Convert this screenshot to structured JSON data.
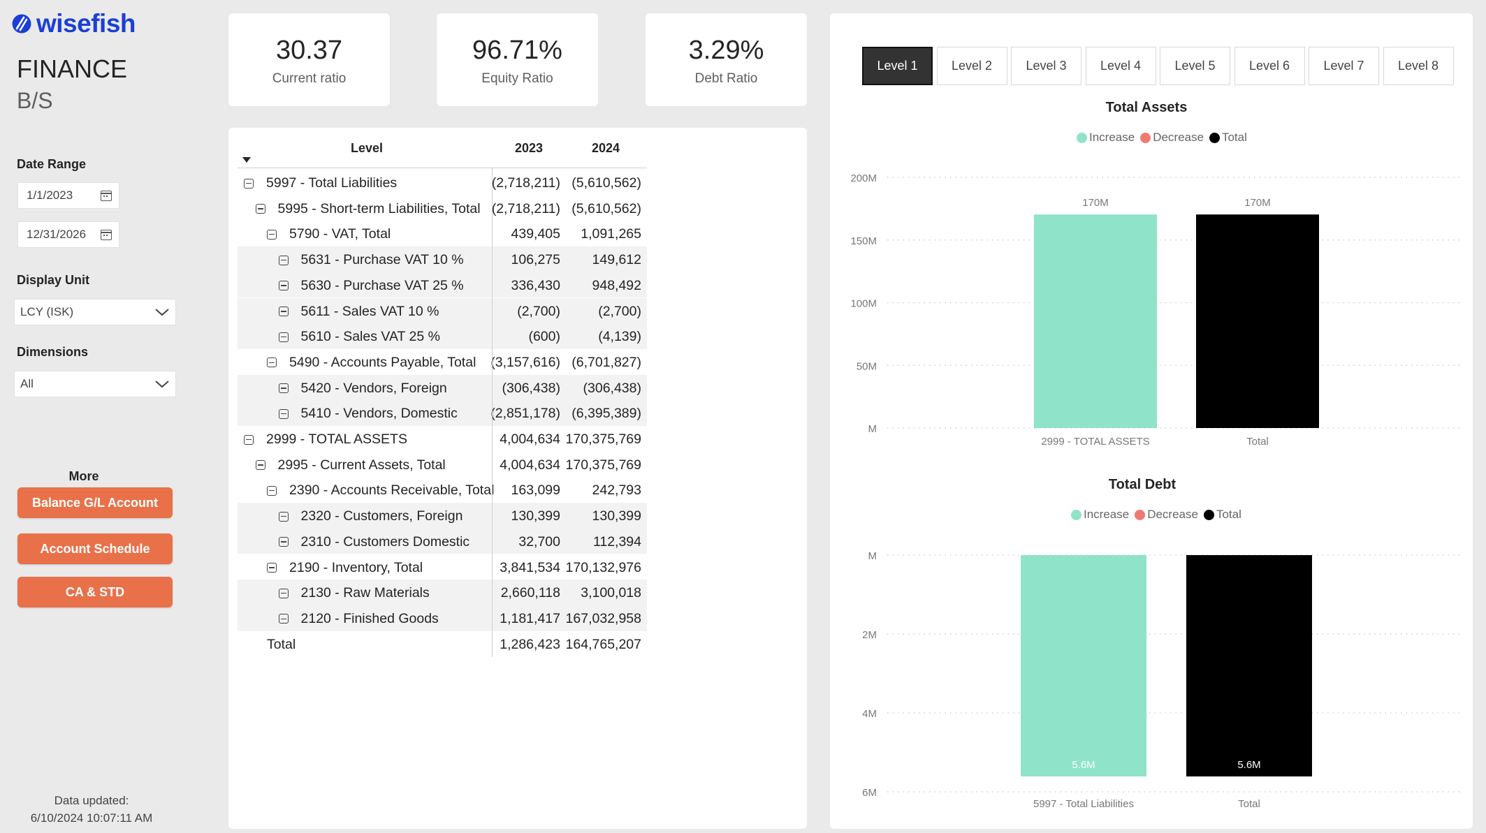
{
  "sidebar": {
    "logo_text": "wisefish",
    "title": "FINANCE",
    "subtitle": "B/S",
    "date_range_label": "Date Range",
    "date_start": "1/1/2023",
    "date_end": "12/31/2026",
    "display_unit_label": "Display Unit",
    "display_unit_value": "LCY (ISK)",
    "dimensions_label": "Dimensions",
    "dimensions_value": "All",
    "more_label": "More",
    "buttons": [
      "Balance G/L Account",
      "Account Schedule",
      "CA & STD"
    ],
    "data_updated_label": "Data updated:",
    "data_updated_value": "6/10/2024 10:07:11 AM"
  },
  "kpis": [
    {
      "value": "30.37",
      "label": "Current ratio"
    },
    {
      "value": "96.71%",
      "label": "Equity Ratio"
    },
    {
      "value": "3.29%",
      "label": "Debt Ratio"
    }
  ],
  "matrix": {
    "headers": {
      "level": "Level",
      "y2023": "2023",
      "y2024": "2024"
    },
    "rows": [
      {
        "label": "5997 - Total Liabilities",
        "v2023": "(2,718,211)",
        "v2024": "(5,610,562)"
      },
      {
        "label": "5995 - Short-term Liabilities, Total",
        "v2023": "(2,718,211)",
        "v2024": "(5,610,562)"
      },
      {
        "label": "5790 - VAT, Total",
        "v2023": "439,405",
        "v2024": "1,091,265"
      },
      {
        "label": "5631 - Purchase VAT 10 %",
        "v2023": "106,275",
        "v2024": "149,612"
      },
      {
        "label": "5630 - Purchase VAT 25 %",
        "v2023": "336,430",
        "v2024": "948,492"
      },
      {
        "label": "5611 - Sales VAT 10 %",
        "v2023": "(2,700)",
        "v2024": "(2,700)"
      },
      {
        "label": "5610 - Sales VAT 25 %",
        "v2023": "(600)",
        "v2024": "(4,139)"
      },
      {
        "label": "5490 - Accounts Payable, Total",
        "v2023": "(3,157,616)",
        "v2024": "(6,701,827)"
      },
      {
        "label": "5420 - Vendors, Foreign",
        "v2023": "(306,438)",
        "v2024": "(306,438)"
      },
      {
        "label": "5410 - Vendors, Domestic",
        "v2023": "(2,851,178)",
        "v2024": "(6,395,389)"
      },
      {
        "label": "2999 - TOTAL ASSETS",
        "v2023": "4,004,634",
        "v2024": "170,375,769"
      },
      {
        "label": "2995 - Current Assets, Total",
        "v2023": "4,004,634",
        "v2024": "170,375,769"
      },
      {
        "label": "2390 - Accounts Receivable, Total",
        "v2023": "163,099",
        "v2024": "242,793"
      },
      {
        "label": "2320 - Customers, Foreign",
        "v2023": "130,399",
        "v2024": "130,399"
      },
      {
        "label": "2310 - Customers Domestic",
        "v2023": "32,700",
        "v2024": "112,394"
      },
      {
        "label": "2190 - Inventory, Total",
        "v2023": "3,841,534",
        "v2024": "170,132,976"
      },
      {
        "label": "2130 - Raw Materials",
        "v2023": "2,660,118",
        "v2024": "3,100,018"
      },
      {
        "label": "2120 - Finished Goods",
        "v2023": "1,181,417",
        "v2024": "167,032,958"
      },
      {
        "label": "Total",
        "v2023": "1,286,423",
        "v2024": "164,765,207"
      }
    ]
  },
  "level_tabs": [
    "Level 1",
    "Level 2",
    "Level 3",
    "Level 4",
    "Level 5",
    "Level 6",
    "Level 7",
    "Level 8"
  ],
  "legend": {
    "increase": "Increase",
    "decrease": "Decrease",
    "total": "Total"
  },
  "colors": {
    "increase": "#8fe3c9",
    "decrease": "#ef7a72",
    "total": "#000000",
    "accent_orange": "#e8714a",
    "logo_blue": "#1b3fd6"
  },
  "chart_data": [
    {
      "type": "bar",
      "subtype": "waterfall",
      "title": "Total Assets",
      "categories": [
        "2999 - TOTAL ASSETS",
        "Total"
      ],
      "values": [
        170375769,
        170375769
      ],
      "bar_kinds": [
        "increase",
        "total"
      ],
      "data_labels": [
        "170M",
        "170M"
      ],
      "yticks": [
        "200M",
        "150M",
        "100M",
        "50M",
        "M"
      ],
      "ylim": [
        0,
        200000000
      ]
    },
    {
      "type": "bar",
      "subtype": "waterfall",
      "title": "Total Debt",
      "categories": [
        "5997 - Total Liabilities",
        "Total"
      ],
      "values": [
        -5610562,
        -5610562
      ],
      "bar_kinds": [
        "increase",
        "total"
      ],
      "data_labels": [
        "5.6M",
        "5.6M"
      ],
      "yticks": [
        "M",
        "2M",
        "4M",
        "6M"
      ],
      "ylim": [
        0,
        -6000000
      ]
    }
  ]
}
